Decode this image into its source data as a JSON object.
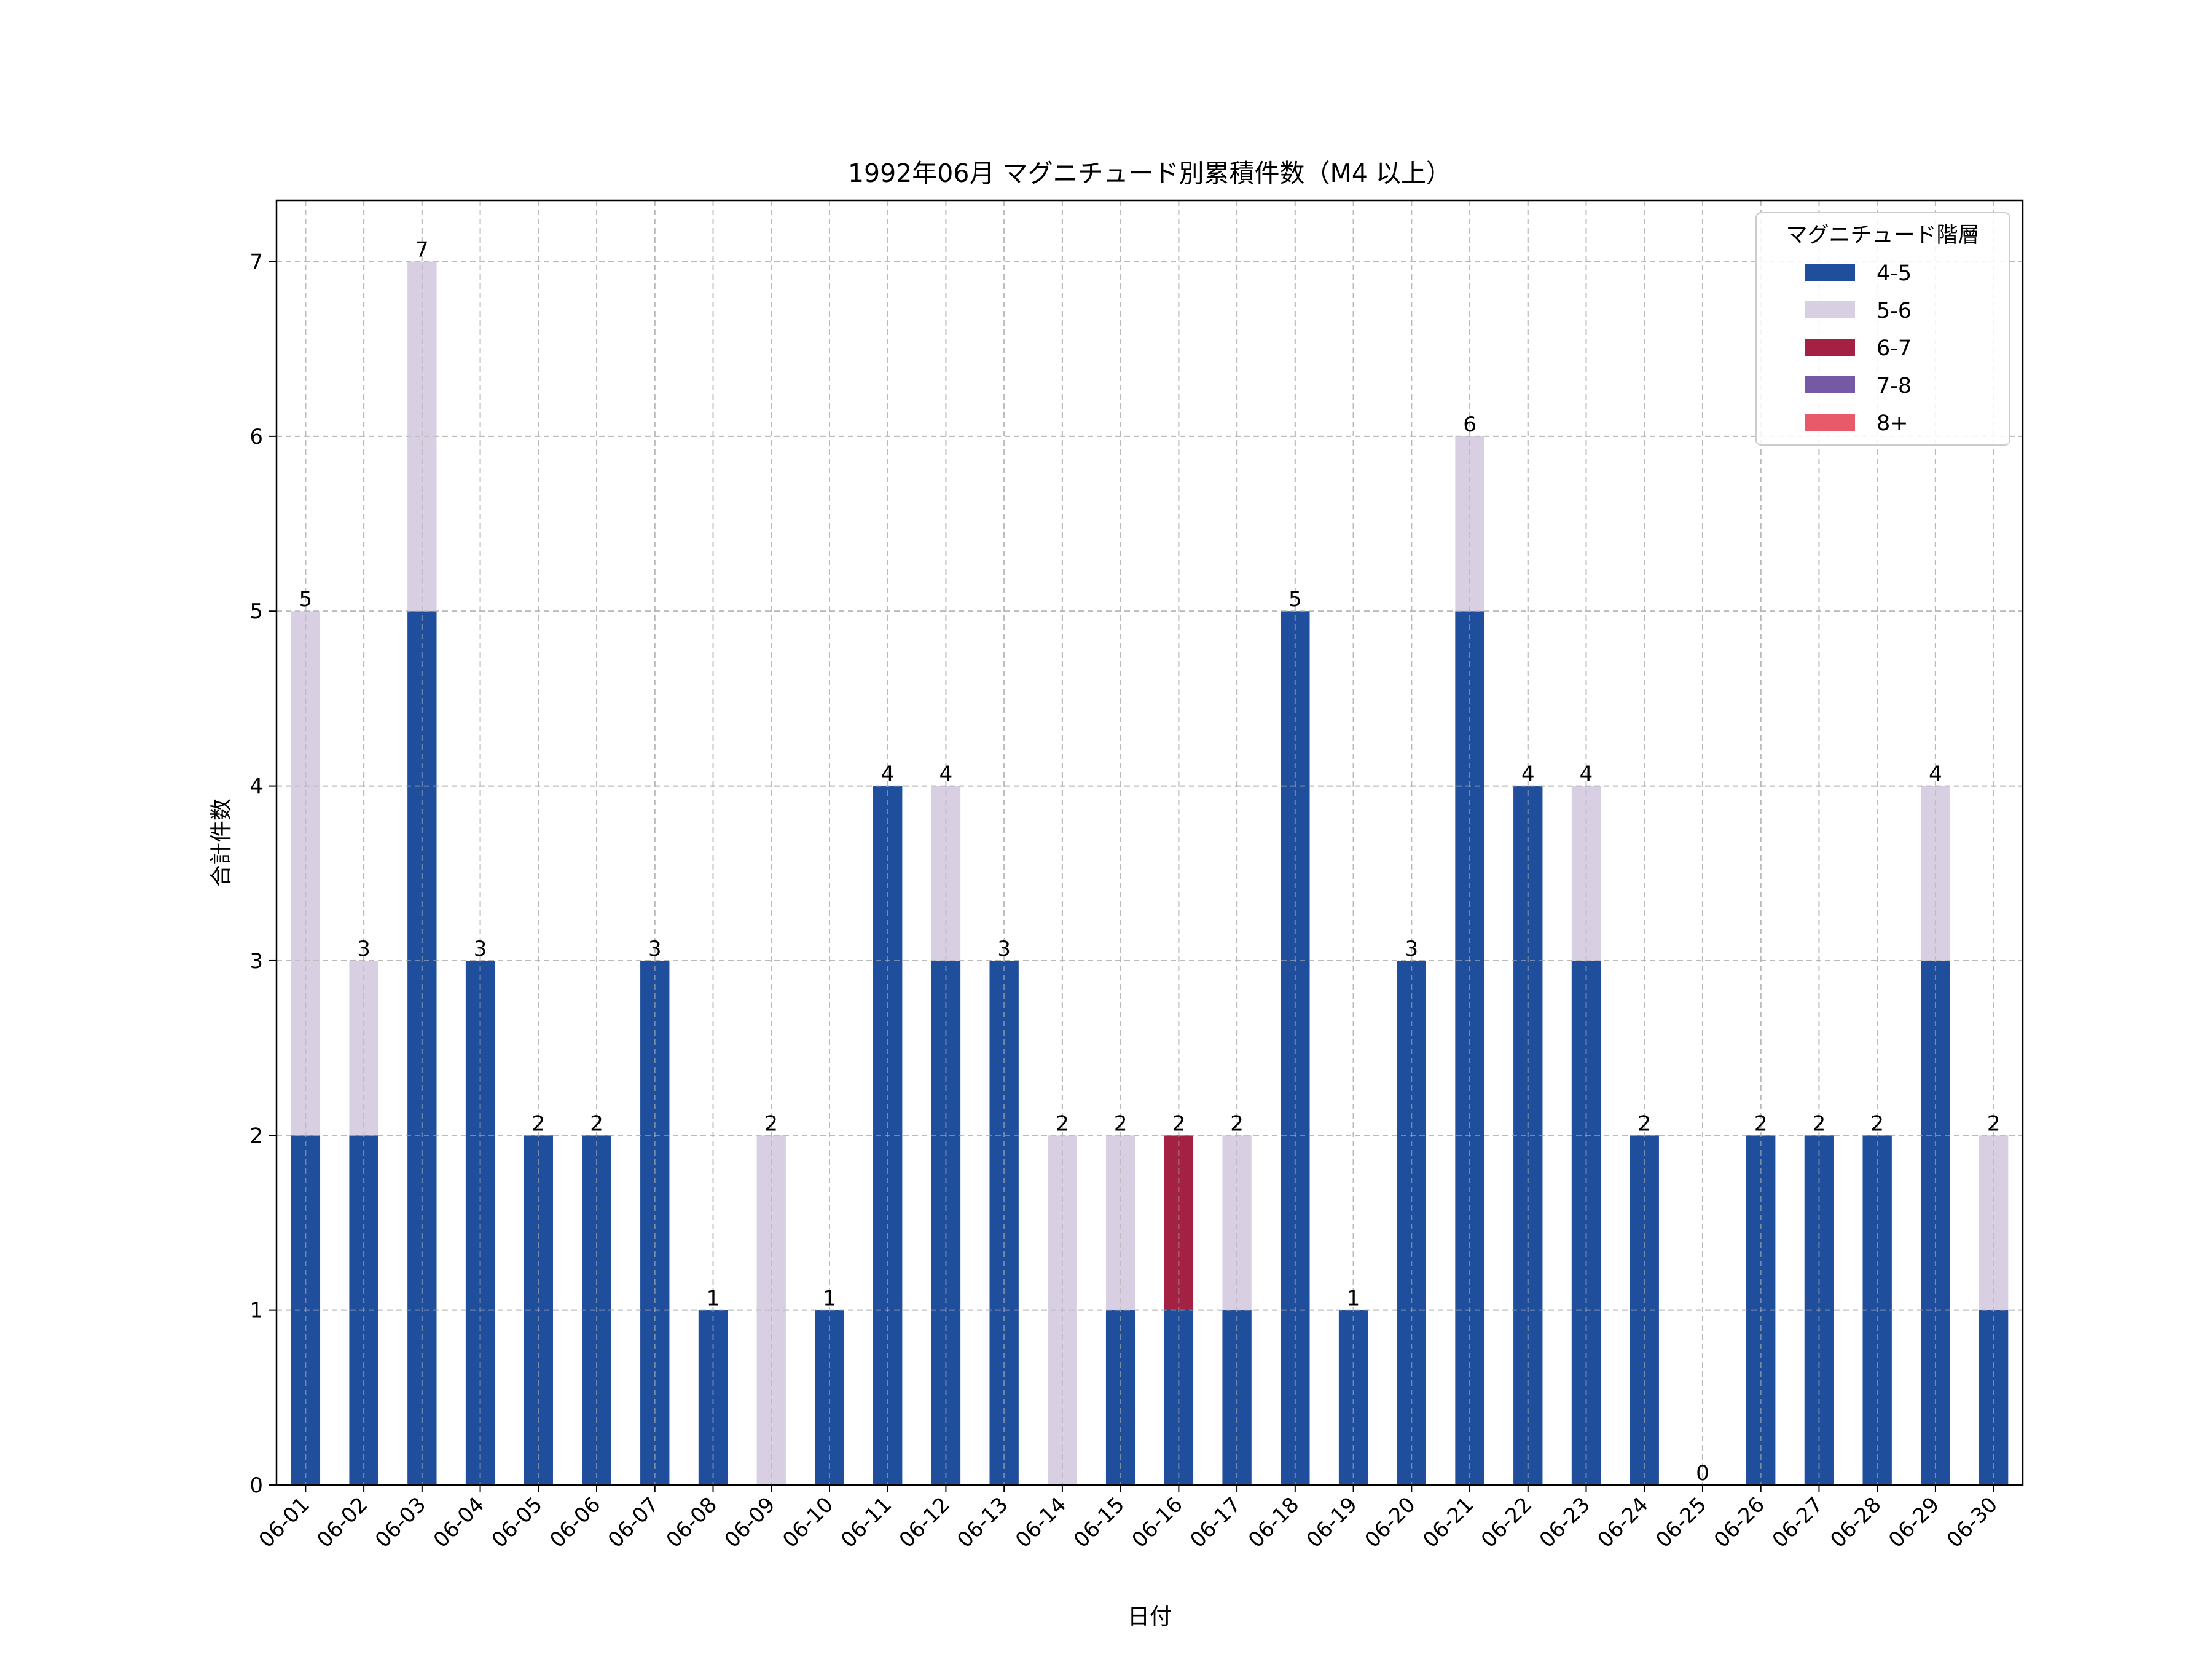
{
  "chart_data": {
    "type": "bar",
    "stacked": true,
    "title": "1992年06月 マグニチュード別累積件数（M4 以上）",
    "xlabel": "日付",
    "ylabel": "合計件数",
    "ylim": [
      0,
      7.35
    ],
    "yticks": [
      0,
      1,
      2,
      3,
      4,
      5,
      6,
      7
    ],
    "grid": true,
    "legend": {
      "title": "マグニチュード階層",
      "placement": "top-right"
    },
    "categories": [
      "06-01",
      "06-02",
      "06-03",
      "06-04",
      "06-05",
      "06-06",
      "06-07",
      "06-08",
      "06-09",
      "06-10",
      "06-11",
      "06-12",
      "06-13",
      "06-14",
      "06-15",
      "06-16",
      "06-17",
      "06-18",
      "06-19",
      "06-20",
      "06-21",
      "06-22",
      "06-23",
      "06-24",
      "06-25",
      "06-26",
      "06-27",
      "06-28",
      "06-29",
      "06-30"
    ],
    "series": [
      {
        "name": "4-5",
        "color": "#1f4e9c",
        "values": [
          2,
          2,
          5,
          3,
          2,
          2,
          3,
          1,
          0,
          1,
          4,
          3,
          3,
          0,
          1,
          1,
          1,
          5,
          1,
          3,
          5,
          4,
          3,
          2,
          0,
          2,
          2,
          2,
          3,
          1
        ]
      },
      {
        "name": "5-6",
        "color": "#d9cfe3",
        "values": [
          3,
          1,
          2,
          0,
          0,
          0,
          0,
          0,
          2,
          0,
          0,
          1,
          0,
          2,
          1,
          0,
          1,
          0,
          0,
          0,
          1,
          0,
          1,
          0,
          0,
          0,
          0,
          0,
          1,
          1
        ]
      },
      {
        "name": "6-7",
        "color": "#a32244",
        "values": [
          0,
          0,
          0,
          0,
          0,
          0,
          0,
          0,
          0,
          0,
          0,
          0,
          0,
          0,
          0,
          1,
          0,
          0,
          0,
          0,
          0,
          0,
          0,
          0,
          0,
          0,
          0,
          0,
          0,
          0
        ]
      },
      {
        "name": "7-8",
        "color": "#7559a5",
        "values": [
          0,
          0,
          0,
          0,
          0,
          0,
          0,
          0,
          0,
          0,
          0,
          0,
          0,
          0,
          0,
          0,
          0,
          0,
          0,
          0,
          0,
          0,
          0,
          0,
          0,
          0,
          0,
          0,
          0,
          0
        ]
      },
      {
        "name": "8+",
        "color": "#e85a6a",
        "values": [
          0,
          0,
          0,
          0,
          0,
          0,
          0,
          0,
          0,
          0,
          0,
          0,
          0,
          0,
          0,
          0,
          0,
          0,
          0,
          0,
          0,
          0,
          0,
          0,
          0,
          0,
          0,
          0,
          0,
          0
        ]
      }
    ],
    "totals": [
      5,
      3,
      7,
      3,
      2,
      2,
      3,
      1,
      2,
      1,
      4,
      4,
      3,
      2,
      2,
      2,
      2,
      5,
      1,
      3,
      6,
      4,
      4,
      2,
      0,
      2,
      2,
      2,
      4,
      2
    ]
  }
}
